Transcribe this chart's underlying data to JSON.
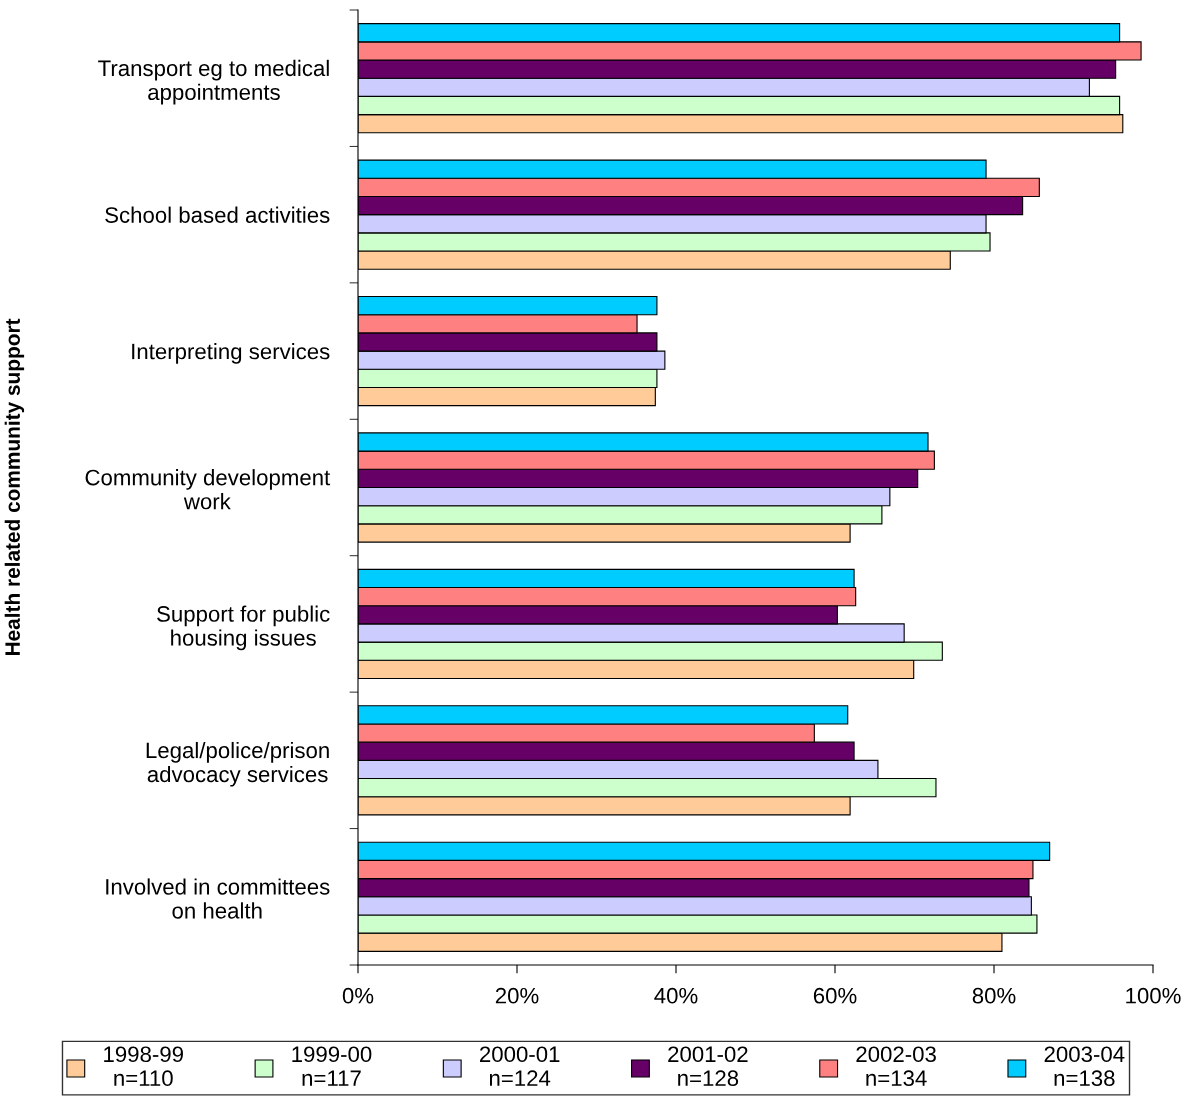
{
  "chart_data": {
    "type": "bar",
    "orientation": "horizontal",
    "ylabel": "Health related community support",
    "categories": [
      "Transport eg to medical\nappointments",
      "School based activities",
      "Interpreting services",
      "Community development\nwork",
      "Support for public\nhousing issues",
      "Legal/police/prison\nadvocacy services",
      "Involved in committees\non health"
    ],
    "series": [
      {
        "name": "1998-99\nn=110",
        "color": "#ffcc99",
        "values": [
          96.2,
          74.5,
          37.4,
          61.9,
          69.9,
          61.9,
          81.0
        ]
      },
      {
        "name": "1999-00\nn=117",
        "color": "#ccffcc",
        "values": [
          95.8,
          79.5,
          37.6,
          65.9,
          73.5,
          72.7,
          85.4
        ]
      },
      {
        "name": "2000-01\nn=124",
        "color": "#ccccff",
        "values": [
          92.0,
          79.0,
          38.6,
          66.9,
          68.7,
          65.4,
          84.7
        ]
      },
      {
        "name": "2001-02\nn=128",
        "color": "#660066",
        "values": [
          95.3,
          83.6,
          37.6,
          70.4,
          60.3,
          62.4,
          84.4
        ]
      },
      {
        "name": "2002-03\nn=134",
        "color": "#ff8080",
        "values": [
          98.5,
          85.7,
          35.1,
          72.5,
          62.6,
          57.4,
          84.9
        ]
      },
      {
        "name": "2003-04\nn=138",
        "color": "#00ccff",
        "values": [
          95.8,
          79.0,
          37.6,
          71.7,
          62.4,
          61.6,
          87.0
        ]
      }
    ],
    "xlim": [
      0,
      100
    ],
    "xticks": [
      {
        "value": 0,
        "label": "0%"
      },
      {
        "value": 20,
        "label": "20%"
      },
      {
        "value": 40,
        "label": "40%"
      },
      {
        "value": 60,
        "label": "60%"
      },
      {
        "value": 80,
        "label": "80%"
      },
      {
        "value": 100,
        "label": "100%"
      }
    ],
    "grid": false,
    "legend": "bottom"
  }
}
